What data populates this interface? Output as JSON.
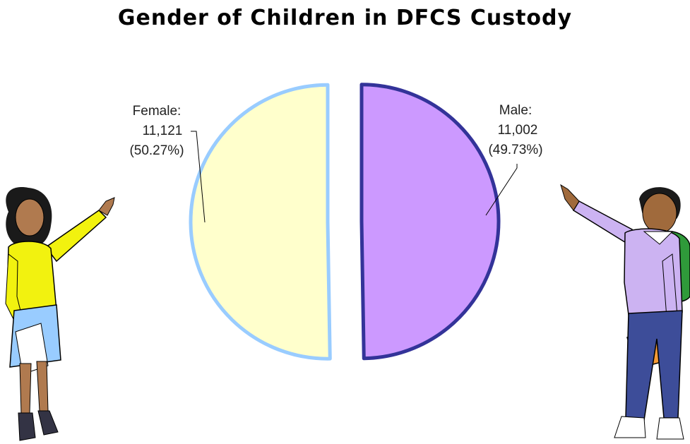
{
  "chart_data": {
    "type": "pie",
    "title": "Gender of Children in DFCS Custody",
    "slices": [
      {
        "label": "Female:",
        "value": "11,121",
        "percent": "(50.27%)",
        "numeric": 11121,
        "pct": 50.27,
        "fill": "#ffffcc",
        "stroke": "#99ccff"
      },
      {
        "label": "Male:",
        "value": "11,002",
        "percent": "(49.73%)",
        "numeric": 11002,
        "pct": 49.73,
        "fill": "#cc99ff",
        "stroke": "#333399"
      }
    ],
    "legend": "none"
  },
  "illustrations": {
    "left": "girl-pointing-icon",
    "right": "boy-pointing-icon"
  }
}
